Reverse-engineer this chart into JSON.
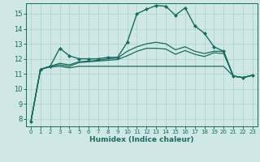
{
  "xlabel": "Humidex (Indice chaleur)",
  "xlim": [
    -0.5,
    23.5
  ],
  "ylim": [
    7.5,
    15.7
  ],
  "yticks": [
    8,
    9,
    10,
    11,
    12,
    13,
    14,
    15
  ],
  "xticks": [
    0,
    1,
    2,
    3,
    4,
    5,
    6,
    7,
    8,
    9,
    10,
    11,
    12,
    13,
    14,
    15,
    16,
    17,
    18,
    19,
    20,
    21,
    22,
    23
  ],
  "bg_color": "#cfe8e5",
  "grid_color": "#aed4cf",
  "line_color": "#1a6b60",
  "lines": [
    {
      "x": [
        0,
        1,
        2,
        3,
        4,
        5,
        6,
        7,
        8,
        9,
        10,
        11,
        12,
        13,
        14,
        15,
        16,
        17,
        18,
        19,
        20,
        21,
        22,
        23
      ],
      "y": [
        7.8,
        11.3,
        11.5,
        12.7,
        12.2,
        12.0,
        12.0,
        12.0,
        12.1,
        12.1,
        13.1,
        15.0,
        15.3,
        15.55,
        15.5,
        14.9,
        15.4,
        14.2,
        13.7,
        12.8,
        12.5,
        10.85,
        10.75,
        10.9
      ],
      "marker": true,
      "lw": 1.0
    },
    {
      "x": [
        0,
        1,
        2,
        3,
        4,
        5,
        6,
        7,
        8,
        9,
        10,
        11,
        12,
        13,
        14,
        15,
        16,
        17,
        18,
        19,
        20,
        21,
        22,
        23
      ],
      "y": [
        7.8,
        11.3,
        11.5,
        11.7,
        11.6,
        11.8,
        11.85,
        11.9,
        12.0,
        12.05,
        12.5,
        12.8,
        13.0,
        13.1,
        13.0,
        12.6,
        12.8,
        12.5,
        12.35,
        12.5,
        12.5,
        10.85,
        10.75,
        10.9
      ],
      "marker": false,
      "lw": 0.9
    },
    {
      "x": [
        0,
        1,
        2,
        3,
        4,
        5,
        6,
        7,
        8,
        9,
        10,
        11,
        12,
        13,
        14,
        15,
        16,
        17,
        18,
        19,
        20,
        21,
        22,
        23
      ],
      "y": [
        7.8,
        11.3,
        11.5,
        11.6,
        11.5,
        11.75,
        11.8,
        11.85,
        11.9,
        11.95,
        12.2,
        12.5,
        12.7,
        12.7,
        12.65,
        12.3,
        12.55,
        12.3,
        12.15,
        12.4,
        12.35,
        10.85,
        10.75,
        10.9
      ],
      "marker": false,
      "lw": 0.9
    },
    {
      "x": [
        0,
        1,
        2,
        3,
        4,
        5,
        6,
        7,
        8,
        9,
        10,
        11,
        12,
        13,
        14,
        15,
        16,
        17,
        18,
        19,
        20,
        21,
        22,
        23
      ],
      "y": [
        7.8,
        11.3,
        11.45,
        11.5,
        11.4,
        11.5,
        11.5,
        11.5,
        11.5,
        11.5,
        11.5,
        11.5,
        11.5,
        11.5,
        11.5,
        11.5,
        11.5,
        11.5,
        11.5,
        11.5,
        11.5,
        10.85,
        10.75,
        10.9
      ],
      "marker": false,
      "lw": 0.9
    }
  ]
}
